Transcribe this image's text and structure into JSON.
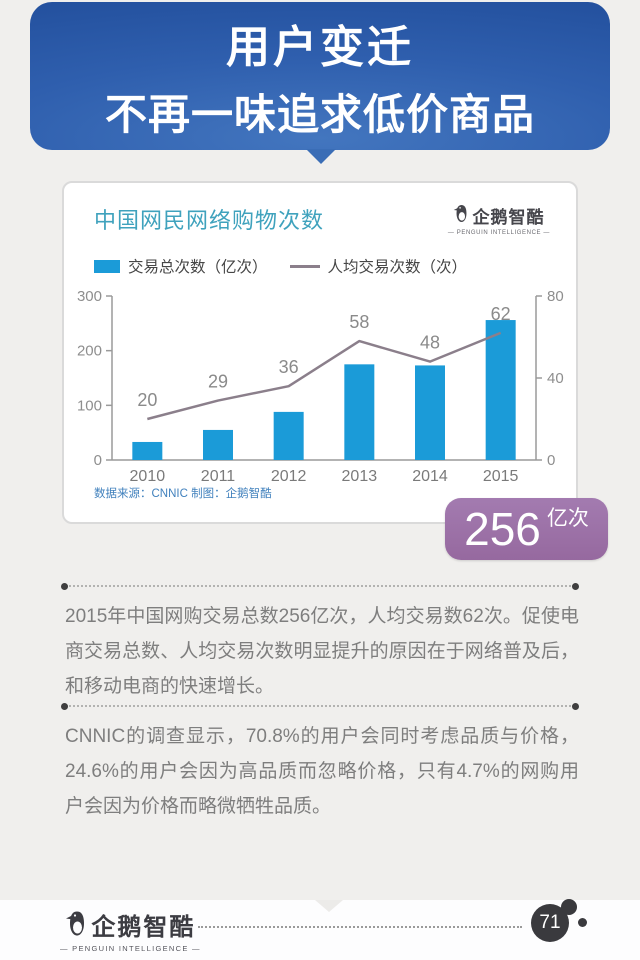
{
  "header": {
    "line1": "用户变迁",
    "line2": "不再一味追求低价商品"
  },
  "brand": {
    "name": "企鹅智酷",
    "subtitle": "— PENGUIN INTELLIGENCE —"
  },
  "card": {
    "title": "中国网民网络购物次数",
    "legend": [
      {
        "label": "交易总次数（亿次）",
        "type": "bar",
        "color": "#1b9bd8"
      },
      {
        "label": "人均交易次数（次）",
        "type": "line",
        "color": "#8b7f8b"
      }
    ],
    "source": "数据来源：CNNIC 制图：企鹅智酷"
  },
  "chart_data": {
    "type": "bar",
    "title": "中国网民网络购物次数",
    "categories": [
      "2010",
      "2011",
      "2012",
      "2013",
      "2014",
      "2015"
    ],
    "series": [
      {
        "name": "交易总次数（亿次）",
        "type": "bar",
        "axis": "left",
        "color": "#1b9bd8",
        "values": [
          33,
          55,
          88,
          175,
          173,
          256
        ]
      },
      {
        "name": "人均交易次数（次）",
        "type": "line",
        "axis": "right",
        "color": "#8b7f8b",
        "values": [
          20,
          29,
          36,
          58,
          48,
          62
        ],
        "labeled": true
      }
    ],
    "left_axis": {
      "ticks": [
        0,
        100,
        200,
        300
      ],
      "max": 300
    },
    "right_axis": {
      "ticks": [
        0,
        40,
        80
      ],
      "max": 80
    },
    "grid": false,
    "legend_position": "top-left"
  },
  "badge": {
    "value": "256",
    "unit": "亿次",
    "color": "#9d71ab"
  },
  "paragraphs": [
    "2015年中国网购交易总数256亿次，人均交易数62次。促使电商交易总数、人均交易次数明显提升的原因在于网络普及后，和移动电商的快速增长。",
    "CNNIC的调查显示，70.8%的用户会同时考虑品质与价格，24.6%的用户会因为高品质而忽略价格，只有4.7%的网购用户会因为价格而略微牺牲品质。"
  ],
  "footer": {
    "page_number": "71"
  },
  "colors": {
    "background": "#f0efed",
    "header_blue": "#2f5fae",
    "bar_blue": "#1b9bd8",
    "line_gray": "#8b7f8b",
    "title_teal": "#3fa2bd",
    "badge_purple": "#9d71ab",
    "source_blue": "#4181bd",
    "body_text": "#7e7e7e"
  }
}
